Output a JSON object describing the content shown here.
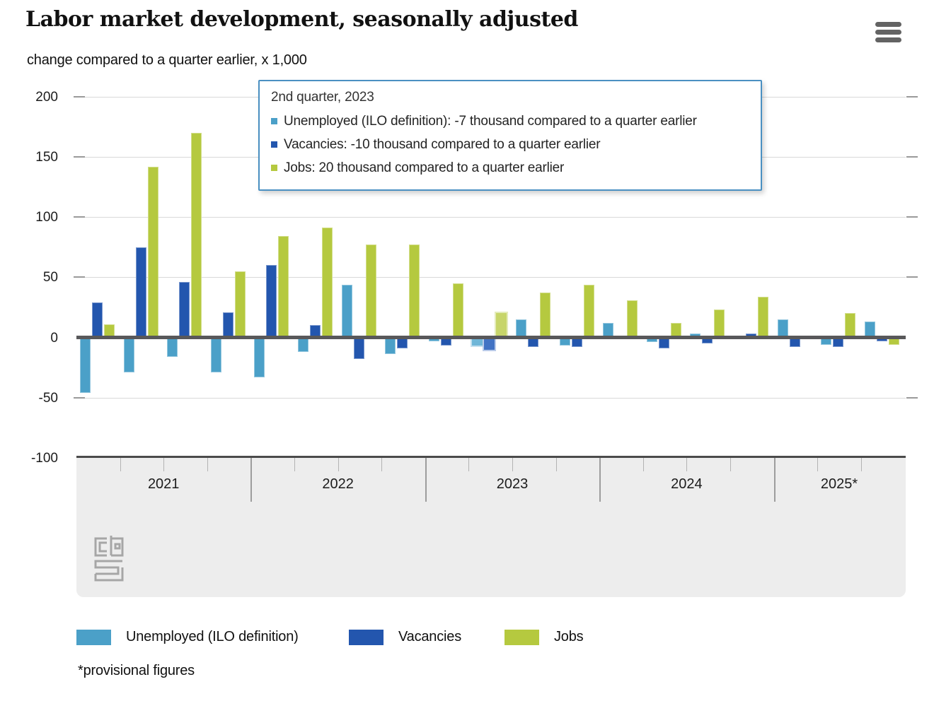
{
  "header": {
    "title": "Labor market development, seasonally adjusted",
    "subtitle": "change compared to a quarter earlier, x 1,000"
  },
  "tooltip": {
    "title": "2nd quarter, 2023",
    "lines": [
      {
        "series": "Unemployed (ILO definition)",
        "color": "#4BA0C8",
        "text": "Unemployed (ILO definition): -7 thousand compared to a quarter earlier"
      },
      {
        "series": "Vacancies",
        "color": "#2356AE",
        "text": "Vacancies: -10 thousand compared to a quarter earlier"
      },
      {
        "series": "Jobs",
        "color": "#B5C93F",
        "text": "Jobs: 20 thousand compared to a quarter earlier"
      }
    ]
  },
  "legend": {
    "items": [
      {
        "label": "Unemployed (ILO definition)",
        "color": "#4BA0C8"
      },
      {
        "label": "Vacancies",
        "color": "#2356AE"
      },
      {
        "label": "Jobs",
        "color": "#B5C93F"
      }
    ]
  },
  "footnote": "*provisional figures",
  "chart_data": {
    "type": "bar",
    "title": "Labor market development, seasonally adjusted",
    "ylabel": "change compared to a quarter earlier, x 1,000",
    "ylim": [
      -100,
      200
    ],
    "yticks": [
      200,
      150,
      100,
      50,
      0,
      -50,
      -100
    ],
    "grid": true,
    "legend_position": "bottom",
    "years": [
      "2021",
      "2022",
      "2023",
      "2024",
      "2025*"
    ],
    "quarters_per_year": [
      4,
      4,
      4,
      4,
      3
    ],
    "categories": [
      "2021 Q1",
      "2021 Q2",
      "2021 Q3",
      "2021 Q4",
      "2022 Q1",
      "2022 Q2",
      "2022 Q3",
      "2022 Q4",
      "2023 Q1",
      "2023 Q2",
      "2023 Q3",
      "2023 Q4",
      "2024 Q1",
      "2024 Q2",
      "2024 Q3",
      "2024 Q4",
      "2025 Q1",
      "2025 Q2",
      "2025 Q3"
    ],
    "series": [
      {
        "name": "Unemployed (ILO definition)",
        "color": "#4BA0C8",
        "hover_color": "#6FB6D8",
        "hover_border": "#C4E0EF",
        "values": [
          -46,
          -29,
          -16,
          -29,
          -33,
          -12,
          44,
          -14,
          -3,
          -7,
          15,
          -7,
          12,
          -4,
          3,
          0,
          15,
          -6,
          13
        ]
      },
      {
        "name": "Vacancies",
        "color": "#2356AE",
        "hover_color": "#4273C4",
        "hover_border": "#B9CBE9",
        "values": [
          29,
          75,
          46,
          21,
          60,
          10,
          -18,
          -9,
          -7,
          -10,
          -8,
          -8,
          0,
          -9,
          -5,
          3,
          -8,
          -8,
          -3
        ]
      },
      {
        "name": "Jobs",
        "color": "#B5C93F",
        "hover_color": "#C7D56A",
        "hover_border": "#E4ECBA",
        "values": [
          11,
          142,
          170,
          55,
          84,
          91,
          77,
          77,
          45,
          20,
          37,
          44,
          31,
          12,
          23,
          34,
          0,
          20,
          -6
        ]
      }
    ],
    "highlighted_category": "2023 Q2",
    "highlighted_index": 9
  }
}
